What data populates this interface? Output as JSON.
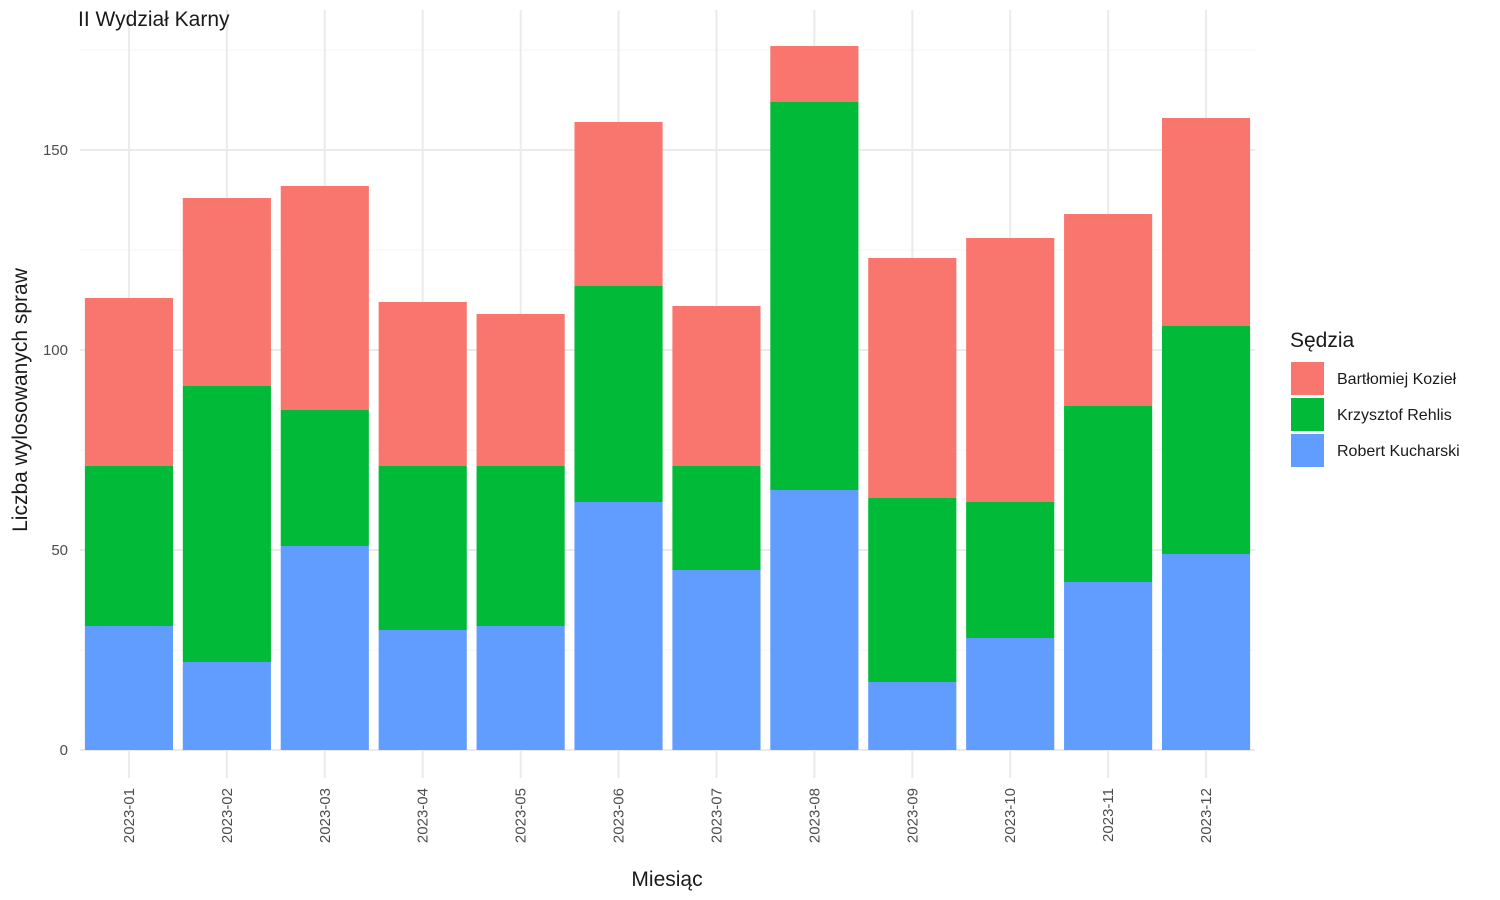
{
  "chart_data": {
    "type": "bar",
    "stacked": true,
    "title": "II Wydział Karny",
    "xlabel": "Miesiąc",
    "ylabel": "Liczba wylosowanych spraw",
    "ylim": [
      0,
      180
    ],
    "yticks": [
      0,
      50,
      100,
      150
    ],
    "grid": true,
    "legend_title": "Sędzia",
    "legend_position": "right",
    "categories": [
      "2023-01",
      "2023-02",
      "2023-03",
      "2023-04",
      "2023-05",
      "2023-06",
      "2023-07",
      "2023-08",
      "2023-09",
      "2023-10",
      "2023-11",
      "2023-12"
    ],
    "series": [
      {
        "name": "Robert Kucharski",
        "color": "#619CFF",
        "values": [
          31,
          22,
          51,
          30,
          31,
          62,
          45,
          65,
          17,
          28,
          42,
          49
        ]
      },
      {
        "name": "Krzysztof Rehlis",
        "color": "#00BA38",
        "values": [
          40,
          69,
          34,
          41,
          40,
          54,
          26,
          97,
          46,
          34,
          44,
          57
        ]
      },
      {
        "name": "Bartłomiej Kozieł",
        "color": "#F8766D",
        "values": [
          42,
          47,
          56,
          41,
          38,
          41,
          40,
          14,
          60,
          66,
          48,
          52
        ]
      }
    ],
    "legend_order": [
      "Bartłomiej Kozieł",
      "Krzysztof Rehlis",
      "Robert Kucharski"
    ]
  }
}
